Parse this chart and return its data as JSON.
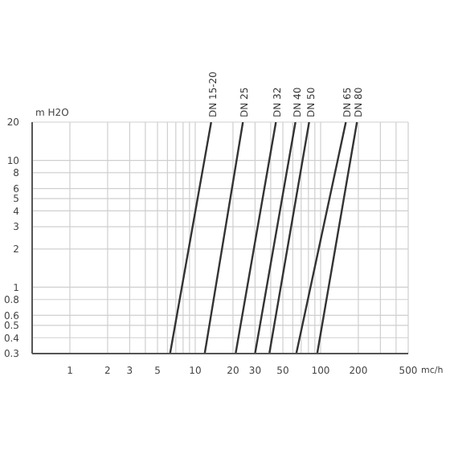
{
  "chart_data": {
    "type": "line",
    "xlabel": "mc/h",
    "ylabel": "m H2O",
    "log": "xy",
    "grid": true,
    "marker": "none",
    "line_style": "solid",
    "xlim": [
      0.5,
      500
    ],
    "ylim": [
      0.3,
      20
    ],
    "xticks": [
      1,
      2,
      3,
      {
        "value": 4,
        "label": null
      },
      5,
      {
        "value": 6,
        "label": null
      },
      {
        "value": 7,
        "label": null
      },
      {
        "value": 8,
        "label": null
      },
      {
        "value": 9,
        "label": null
      },
      10,
      20,
      30,
      {
        "value": 40,
        "label": null
      },
      50,
      {
        "value": 60,
        "label": null
      },
      {
        "value": 70,
        "label": null
      },
      {
        "value": 80,
        "label": null
      },
      {
        "value": 90,
        "label": null
      },
      100,
      200,
      {
        "value": 300,
        "label": null
      },
      {
        "value": 400,
        "label": null
      },
      500
    ],
    "yticks": [
      0.3,
      0.4,
      0.5,
      0.6,
      0.8,
      1,
      2,
      3,
      4,
      5,
      6,
      8,
      10,
      20
    ],
    "series": [
      {
        "name": "DN 15-20",
        "color": "#333333",
        "x": [
          6.3,
          13.4
        ],
        "values": [
          0.3,
          20
        ]
      },
      {
        "name": "DN 25",
        "color": "#333333",
        "x": [
          11.9,
          24
        ],
        "values": [
          0.3,
          20
        ]
      },
      {
        "name": "DN 32",
        "color": "#333333",
        "x": [
          21,
          44
        ],
        "values": [
          0.3,
          20
        ]
      },
      {
        "name": "DN 40",
        "color": "#333333",
        "x": [
          30,
          63
        ],
        "values": [
          0.3,
          20
        ]
      },
      {
        "name": "DN 50",
        "color": "#333333",
        "x": [
          39,
          81
        ],
        "values": [
          0.3,
          20
        ]
      },
      {
        "name": "DN 65",
        "color": "#333333",
        "x": [
          64,
          159
        ],
        "values": [
          0.3,
          20
        ]
      },
      {
        "name": "DN 80",
        "color": "#333333",
        "x": [
          94,
          195
        ],
        "values": [
          0.3,
          20
        ]
      }
    ]
  }
}
